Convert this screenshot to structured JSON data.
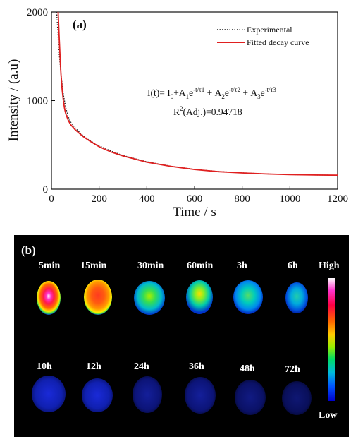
{
  "chart_data": {
    "type": "line",
    "panel_label": "(a)",
    "xlabel": "Time / s",
    "ylabel": "Intensity / (a.u)",
    "xlim": [
      0,
      1200
    ],
    "ylim": [
      0,
      2000
    ],
    "xticks": [
      "0",
      "200",
      "400",
      "600",
      "800",
      "1000",
      "1200"
    ],
    "yticks": [
      "0",
      "1000",
      "2000"
    ],
    "legend_position": "top-right",
    "series": [
      {
        "name": "Experimental",
        "style": "dotted",
        "color": "#222222",
        "x": [
          22,
          30,
          40,
          50,
          60,
          70,
          80,
          100,
          130,
          160,
          200,
          250,
          300,
          400,
          500,
          600,
          700,
          800,
          900,
          1000,
          1100,
          1200
        ],
        "y": [
          2000,
          1600,
          1300,
          1070,
          920,
          820,
          760,
          690,
          610,
          550,
          490,
          430,
          380,
          310,
          260,
          225,
          200,
          185,
          172,
          165,
          160,
          158
        ]
      },
      {
        "name": "Fitted decay curve",
        "style": "solid",
        "color": "#e02020",
        "x": [
          28,
          32,
          36,
          40,
          45,
          50,
          55,
          60,
          70,
          80,
          100,
          130,
          160,
          200,
          250,
          300,
          400,
          500,
          600,
          700,
          800,
          900,
          1000,
          1100,
          1200
        ],
        "y": [
          2000,
          1750,
          1500,
          1300,
          1120,
          1000,
          910,
          850,
          780,
          730,
          670,
          600,
          545,
          480,
          420,
          375,
          305,
          258,
          222,
          198,
          183,
          172,
          164,
          160,
          158
        ]
      }
    ],
    "annotations": {
      "formula": "I(t)= I0+A1e-t/τ1 + A2e-t/τ2 + A3e-t/τ3",
      "r_squared": "R2(Adj.)=0.94718"
    }
  },
  "panel_b": {
    "panel_label": "(b)",
    "row1": [
      "5min",
      "15min",
      "30min",
      "60min",
      "3h",
      "6h"
    ],
    "row2": [
      "10h",
      "12h",
      "24h",
      "36h",
      "48h",
      "72h"
    ],
    "scale_high": "High",
    "scale_low": "Low",
    "colors": {
      "background": "#000000",
      "scale": [
        "#ffffff",
        "#ff33cc",
        "#ff0044",
        "#ff6600",
        "#ffcc00",
        "#99ee00",
        "#00dd66",
        "#00bbdd",
        "#0055ff",
        "#0000cc"
      ]
    }
  }
}
